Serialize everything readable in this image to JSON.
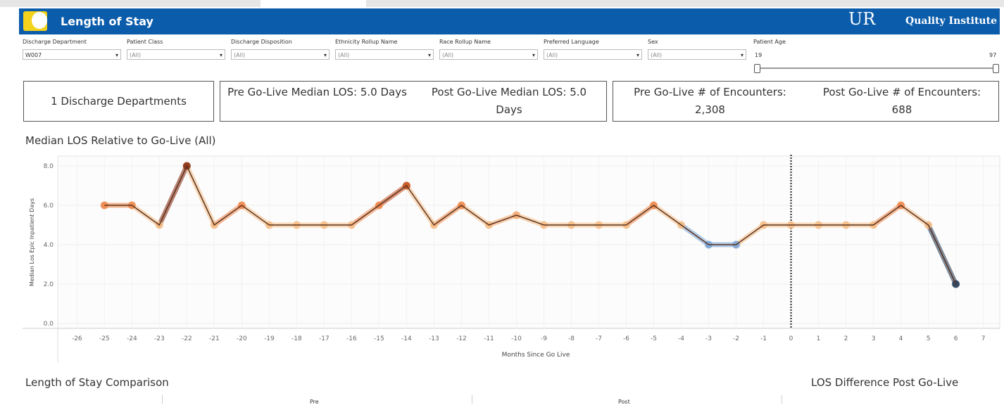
{
  "header": {
    "title": "Length of Stay",
    "logo_text": "UR",
    "org": "Quality Institute"
  },
  "filters": [
    {
      "label": "Discharge Department",
      "value": "W007"
    },
    {
      "label": "Patient Class",
      "value": "(All)"
    },
    {
      "label": "Discharge Disposition",
      "value": "(All)"
    },
    {
      "label": "Ethnicity Rollup Name",
      "value": "(All)"
    },
    {
      "label": "Race Rollup Name",
      "value": "(All)"
    },
    {
      "label": "Preferred Language",
      "value": "(All)"
    },
    {
      "label": "Sex",
      "value": "(All)"
    }
  ],
  "age_filter": {
    "label": "Patient Age",
    "min": 19,
    "max": 97
  },
  "kpis": {
    "departments": "1 Discharge Departments",
    "pre_los": "Pre Go-Live Median LOS: 5.0 Days",
    "post_los": "Post Go-Live Median LOS: 5.0 Days",
    "pre_enc_label": "Pre Go-Live # of Encounters:",
    "pre_enc": "2,308",
    "post_enc_label": "Post Go-Live # of Encounters:",
    "post_enc": "688"
  },
  "chart_data": {
    "type": "line",
    "title": "Median LOS Relative to Go-Live (All)",
    "x_label": "Months Since Go Live",
    "y_label": "Median Los Epic Inpatient Days",
    "x": [
      -25,
      -24,
      -23,
      -22,
      -21,
      -20,
      -19,
      -18,
      -17,
      -16,
      -15,
      -14,
      -13,
      -12,
      -11,
      -10,
      -9,
      -8,
      -7,
      -6,
      -5,
      -4,
      -3,
      -2,
      -1,
      0,
      1,
      2,
      3,
      4,
      5,
      6
    ],
    "values": [
      6,
      6,
      5,
      8,
      5,
      6,
      5,
      5,
      5,
      5,
      6,
      7,
      5,
      6,
      5,
      5.5,
      5,
      5,
      5,
      5,
      6,
      5,
      4,
      4,
      5,
      5,
      5,
      5,
      5,
      6,
      5,
      2
    ],
    "colors": [
      "#ee8a4f",
      "#ee8a4f",
      "#f5bf8a",
      "#8b2f12",
      "#f5bf8a",
      "#ee8a4f",
      "#f5bf8a",
      "#f5bf8a",
      "#f5bf8a",
      "#f5bf8a",
      "#ee8a4f",
      "#c4521f",
      "#f5bf8a",
      "#ee8a4f",
      "#f5bf8a",
      "#f3ab74",
      "#f5bf8a",
      "#f5bf8a",
      "#f5bf8a",
      "#f5bf8a",
      "#ee8a4f",
      "#f5bf8a",
      "#7ea6d4",
      "#7ea6d4",
      "#f5bf8a",
      "#f5bf8a",
      "#f5bf8a",
      "#f5bf8a",
      "#f5bf8a",
      "#ee8a4f",
      "#f5bf8a",
      "#2a3f5a"
    ],
    "line_color": "#5b3320",
    "xlim": [
      -26.7,
      7.6
    ],
    "xticks": [
      -26,
      -25,
      -24,
      -23,
      -22,
      -21,
      -20,
      -19,
      -18,
      -17,
      -16,
      -15,
      -14,
      -13,
      -12,
      -11,
      -10,
      -9,
      -8,
      -7,
      -6,
      -5,
      -4,
      -3,
      -2,
      -1,
      0,
      1,
      2,
      3,
      4,
      5,
      6,
      7
    ],
    "ylim": [
      -0.25,
      8.5
    ],
    "yticks": [
      {
        "value": 0,
        "label": "0.0"
      },
      {
        "value": 2,
        "label": "2.0"
      },
      {
        "value": 4,
        "label": "4.0"
      },
      {
        "value": 6,
        "label": "6.0"
      },
      {
        "value": 8,
        "label": "8.0"
      }
    ],
    "reference_line": 0,
    "grid": true
  },
  "bottom": {
    "left_title": "Length of Stay Comparison",
    "right_title": "LOS Difference Post Go-Live",
    "pre": "Pre",
    "post": "Post"
  }
}
